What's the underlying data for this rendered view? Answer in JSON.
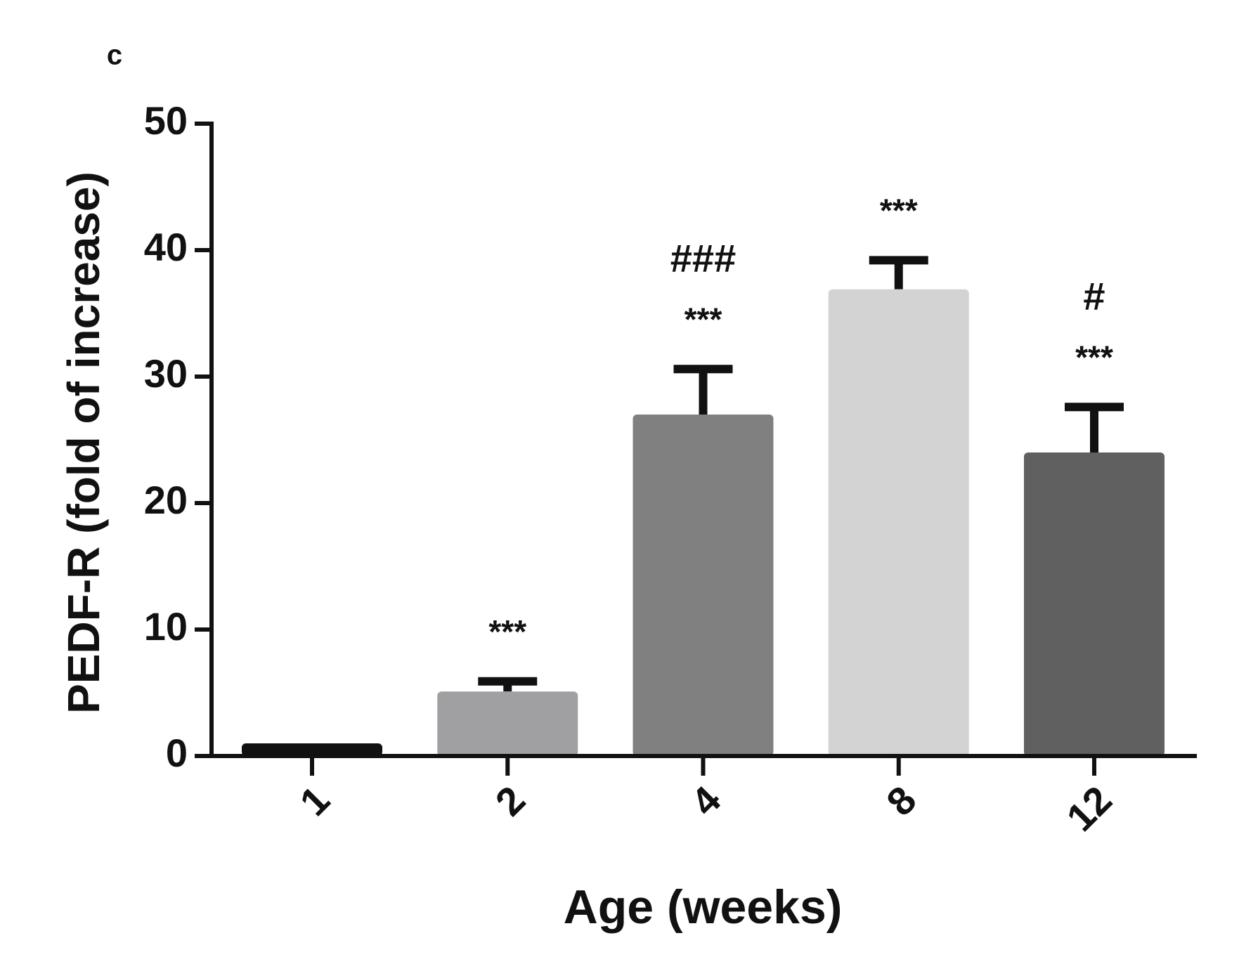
{
  "chart_data": {
    "type": "bar",
    "panel_label": "c",
    "xlabel": "Age (weeks)",
    "ylabel": "PEDF-R (fold of increase)",
    "categories": [
      "1",
      "2",
      "4",
      "8",
      "12"
    ],
    "values": [
      1,
      5.1,
      27,
      36.9,
      24
    ],
    "errors": [
      0,
      0.8,
      3.6,
      2.3,
      3.6
    ],
    "colors": [
      "#111111",
      "#a0a0a2",
      "#808080",
      "#d3d3d3",
      "#606060"
    ],
    "annotations": [
      [],
      [
        "***"
      ],
      [
        "###",
        "***"
      ],
      [
        "***"
      ],
      [
        "#",
        "***"
      ]
    ],
    "ylim": [
      0,
      50
    ],
    "yticks": [
      0,
      10,
      20,
      30,
      40,
      50
    ]
  }
}
